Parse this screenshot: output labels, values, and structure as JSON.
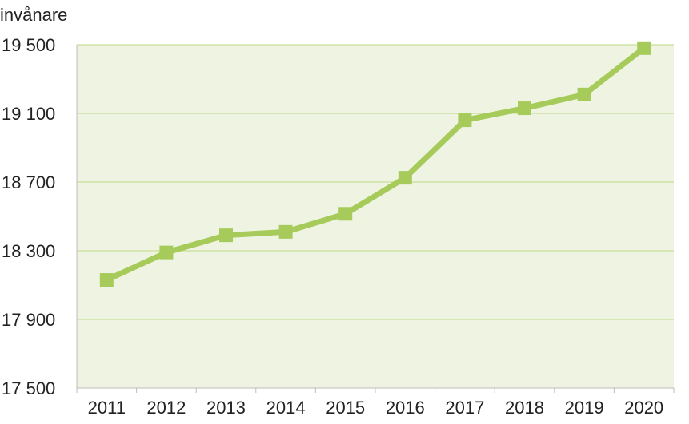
{
  "chart_data": {
    "type": "line",
    "ylabel": "invånare",
    "categories": [
      "2011",
      "2012",
      "2013",
      "2014",
      "2015",
      "2016",
      "2017",
      "2018",
      "2019",
      "2020"
    ],
    "series": [
      {
        "values": [
          18130,
          18290,
          18390,
          18410,
          18515,
          18725,
          19060,
          19130,
          19210,
          19480
        ]
      }
    ],
    "ylim": [
      17500,
      19500
    ],
    "yticks": [
      17500,
      17900,
      18300,
      18700,
      19100,
      19500
    ],
    "ytick_labels": [
      "17 500",
      "17 900",
      "18 300",
      "18 700",
      "19 100",
      "19 500"
    ],
    "grid": true,
    "marker": "square",
    "colors": {
      "line": "#a6cb5b",
      "plot_bg": "#eff4e2",
      "grid": "#c8df97"
    }
  }
}
